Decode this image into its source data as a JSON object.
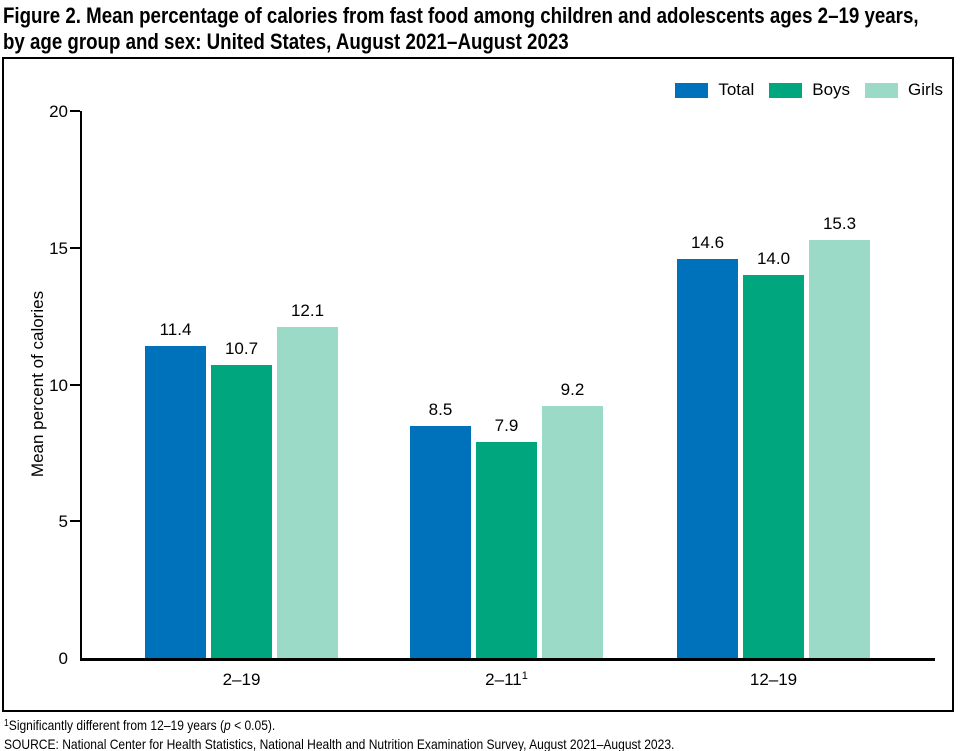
{
  "title_line1": "Figure 2. Mean percentage of calories from fast food among children and adolescents ages 2–19 years,",
  "title_line2": "by age group and sex: United States, August 2021–August 2023",
  "chart_data": {
    "type": "bar",
    "title": "Figure 2. Mean percentage of calories from fast food among children and adolescents ages 2–19 years, by age group and sex: United States, August 2021–August 2023",
    "categories": [
      {
        "label": "2–19",
        "sup": ""
      },
      {
        "label": "2–11",
        "sup": "1"
      },
      {
        "label": "12–19",
        "sup": ""
      }
    ],
    "series": [
      {
        "name": "Total",
        "color": "#0072BC",
        "values": [
          11.4,
          8.5,
          14.6
        ]
      },
      {
        "name": "Boys",
        "color": "#00A67E",
        "values": [
          10.7,
          7.9,
          14.0
        ]
      },
      {
        "name": "Girls",
        "color": "#9CDAC8",
        "values": [
          12.1,
          9.2,
          15.3
        ]
      }
    ],
    "xlabel": "",
    "ylabel": "Mean percent of calories",
    "yticks": [
      0,
      5,
      10,
      15,
      20
    ],
    "ylim": [
      0,
      20
    ],
    "grid": false,
    "legend_position": "top-right"
  },
  "footnotes": {
    "line1_sup": "1",
    "line1_pre": "Significantly different from 12–19 years (",
    "line1_italic": "p",
    "line1_post": " < 0.05).",
    "line2": "SOURCE: National Center for Health Statistics, National Health and Nutrition Examination Survey, August 2021–August 2023."
  }
}
